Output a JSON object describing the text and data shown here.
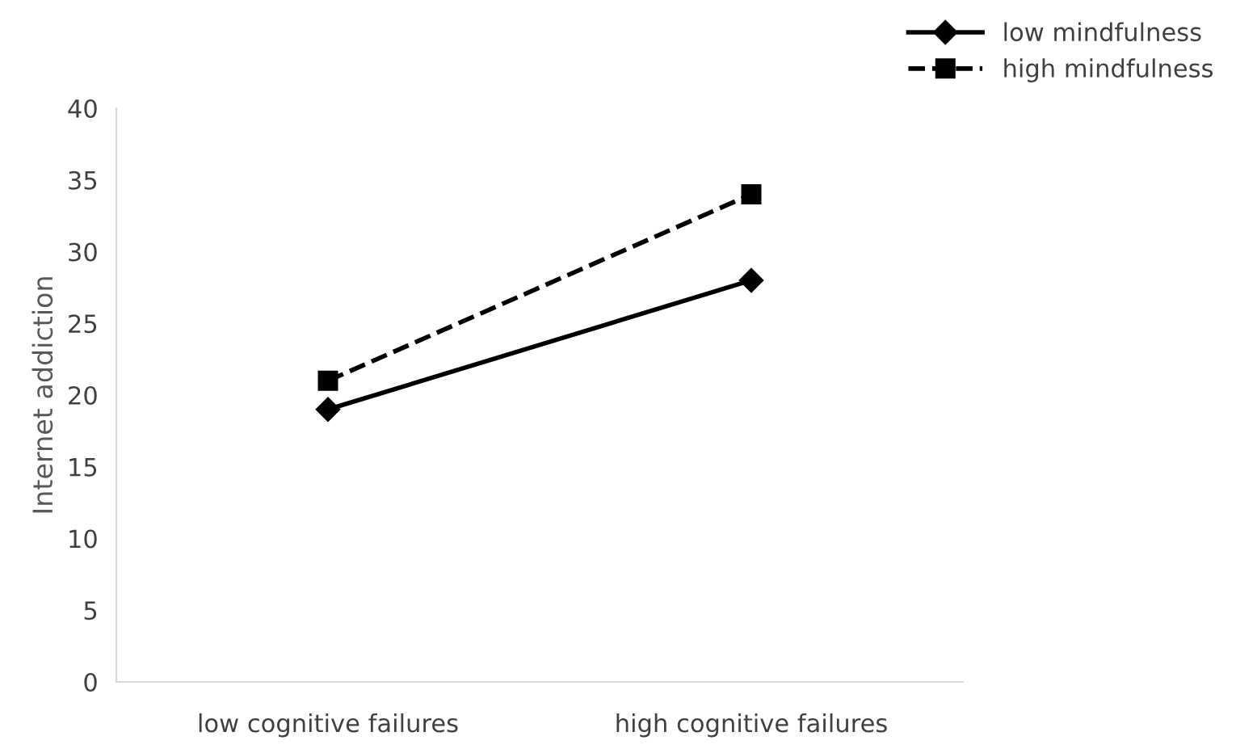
{
  "chart_data": {
    "type": "line",
    "ylabel": "Internet addiction",
    "categories": [
      "low cognitive failures",
      "high cognitive failures"
    ],
    "series": [
      {
        "name": "low mindfulness",
        "color": "#000000",
        "values": [
          19,
          28
        ],
        "marker": "diamond",
        "line_style": "solid"
      },
      {
        "name": "high mindfulness",
        "color": "#000000",
        "values": [
          21,
          34
        ],
        "marker": "square",
        "line_style": "dashed"
      }
    ],
    "ylim": [
      0,
      40
    ],
    "yticks": [
      0,
      5,
      10,
      15,
      20,
      25,
      30,
      35,
      40
    ],
    "grid": false,
    "legend": "top right"
  }
}
